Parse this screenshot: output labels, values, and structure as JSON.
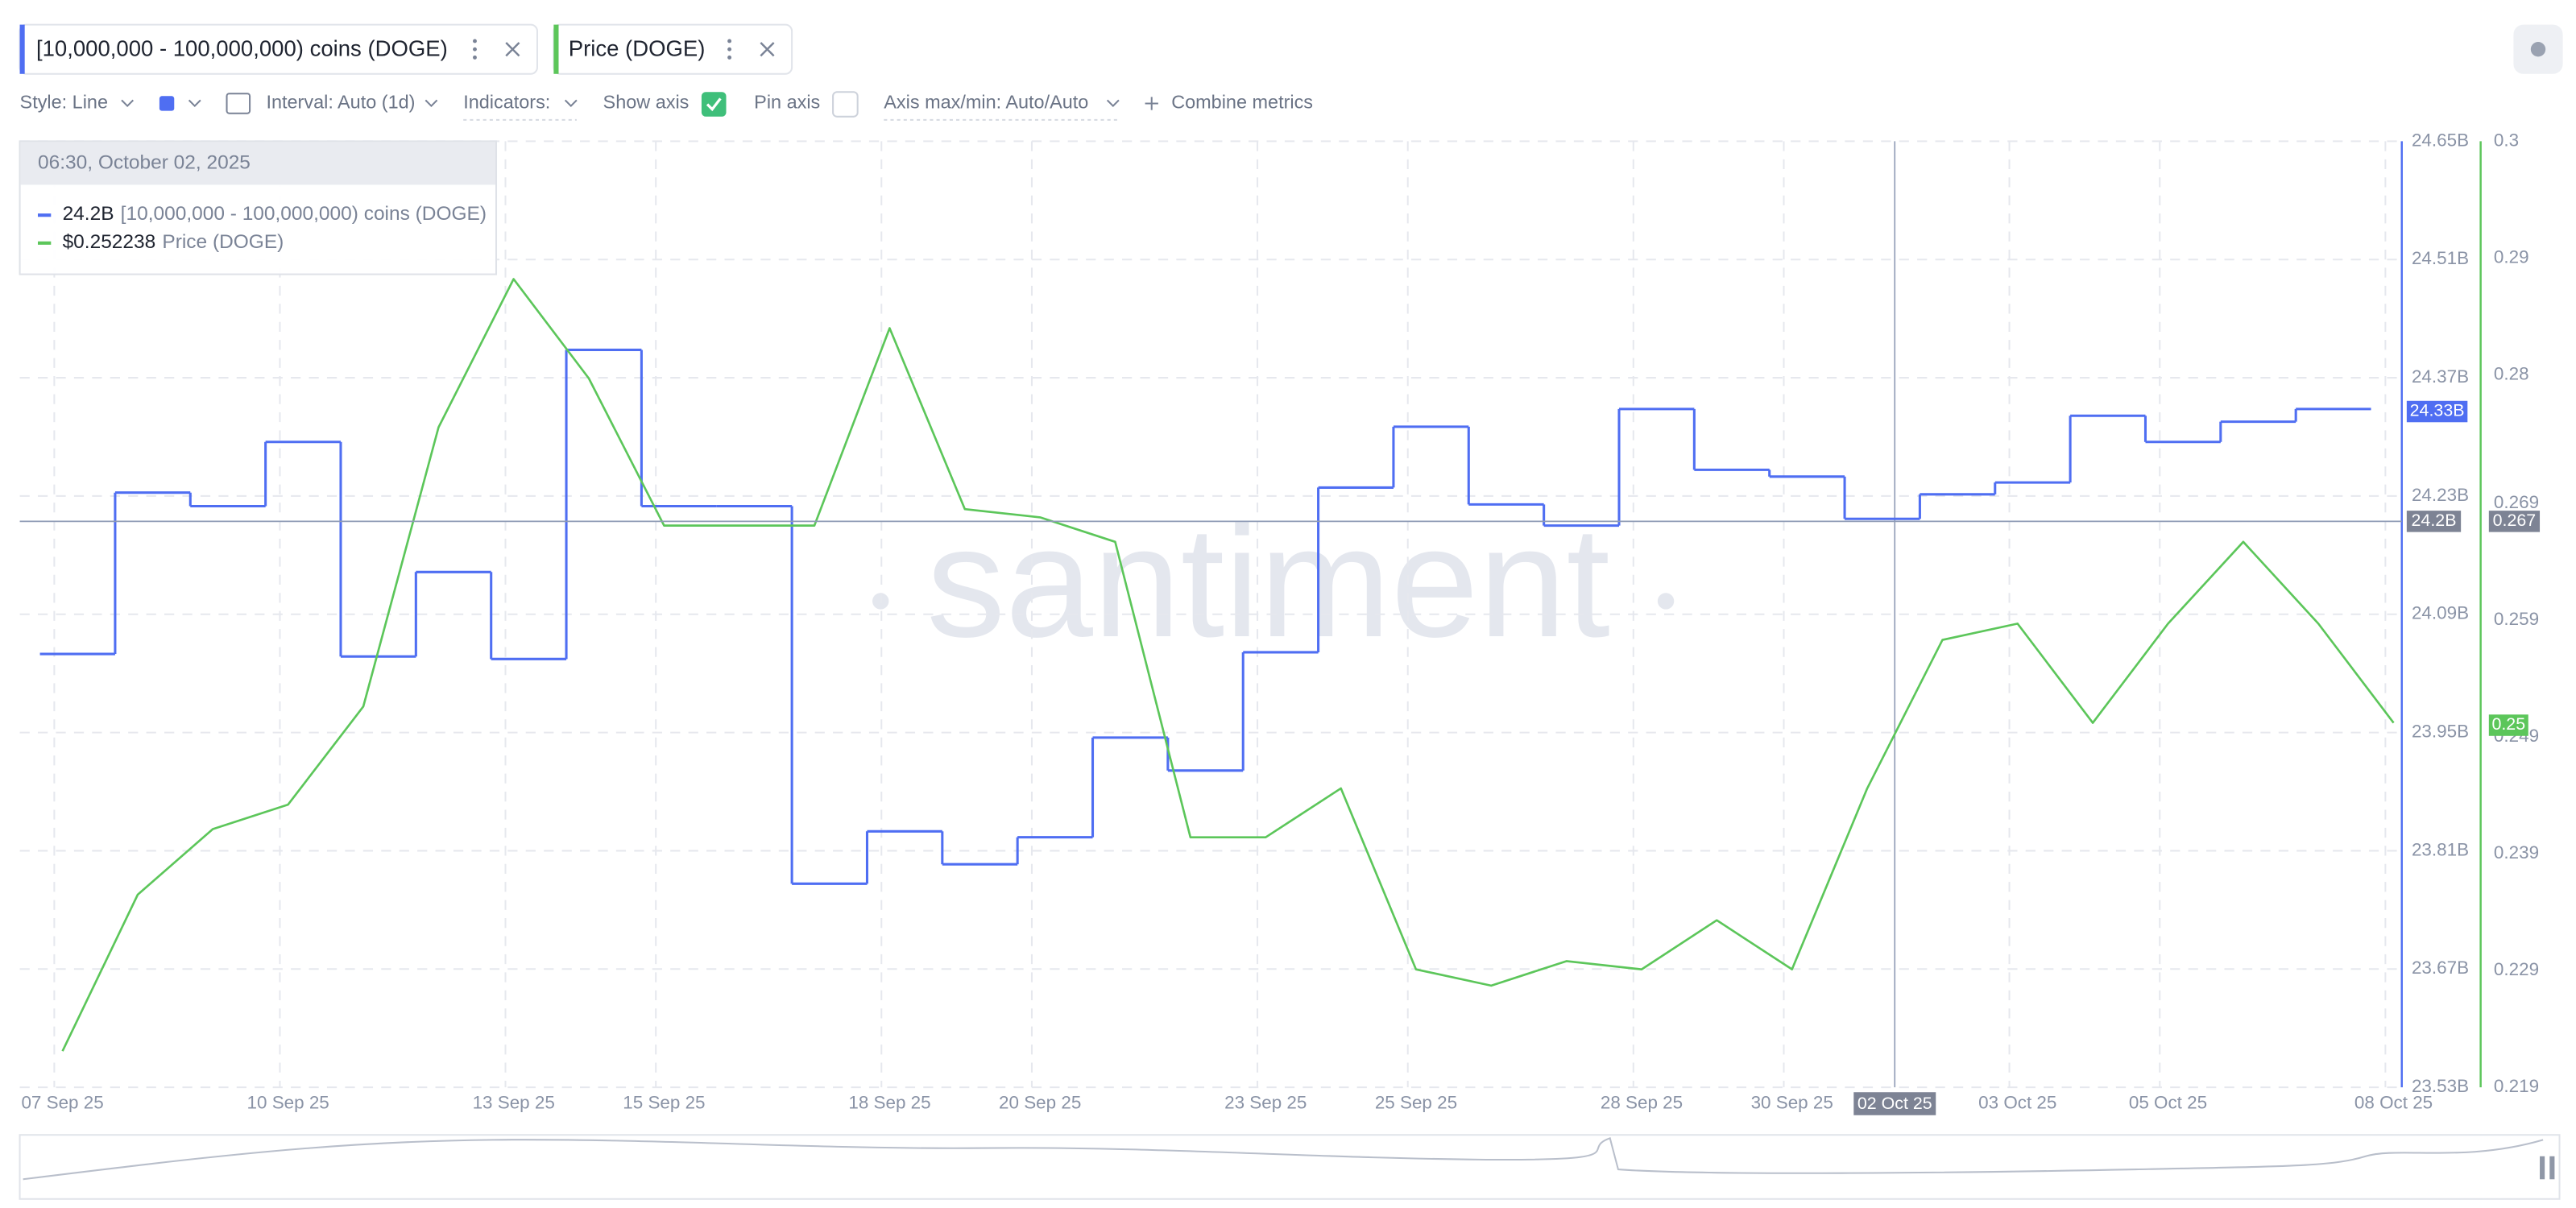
{
  "toolbar": {
    "style": "Style: Line",
    "interval": "Interval: Auto (1d)",
    "indicators": "Indicators:",
    "show_axis": "Show axis",
    "pin_axis": "Pin axis",
    "axis_minmax": "Axis max/min: Auto/Auto",
    "combine": "Combine metrics"
  },
  "tooltip": {
    "time": "06:30, October 02, 2025",
    "rows": [
      "24.2B",
      "$0.252238"
    ]
  },
  "chart_data": {
    "type": "line",
    "watermark": "santiment",
    "categories": [
      "07 Sep 25",
      null,
      null,
      "10 Sep 25",
      null,
      null,
      "13 Sep 25",
      null,
      "15 Sep 25",
      null,
      null,
      "18 Sep 25",
      null,
      "20 Sep 25",
      null,
      null,
      "23 Sep 25",
      null,
      "25 Sep 25",
      null,
      null,
      "28 Sep 25",
      null,
      "30 Sep 25",
      null,
      "02 Oct 25",
      "03 Oct 25",
      null,
      "05 Oct 25",
      null,
      null,
      "08 Oct 25"
    ],
    "series": [
      {
        "name": "[10,000,000 - 100,000,000) coins (DOGE)",
        "color": "#4f6ef2",
        "step": true,
        "axis": "y",
        "current": {
          "value": 24.33,
          "label": "24.33B"
        },
        "values": [
          24.043,
          24.234,
          24.218,
          24.294,
          24.04,
          24.14,
          24.037,
          24.403,
          24.218,
          24.218,
          23.771,
          23.833,
          23.794,
          23.826,
          23.944,
          23.905,
          24.045,
          24.24,
          24.312,
          24.22,
          24.195,
          24.333,
          24.261,
          24.253,
          24.203,
          24.232,
          24.246,
          24.325,
          24.294,
          24.318,
          24.333,
          null
        ]
      },
      {
        "name": "Price (DOGE)",
        "color": "#5cc65a",
        "step": false,
        "axis": "y2",
        "current": 0.25,
        "values": [
          0.2221,
          0.2355,
          0.2411,
          0.2432,
          0.2516,
          0.2755,
          0.2882,
          0.2797,
          0.2671,
          0.2671,
          0.2671,
          0.284,
          0.2685,
          0.2678,
          0.2657,
          0.2404,
          0.2404,
          0.2446,
          0.2291,
          0.2277,
          0.2298,
          0.2291,
          0.2333,
          0.2291,
          0.2446,
          0.2573,
          0.2587,
          0.2502,
          0.2587,
          0.2657,
          0.2587,
          0.2502
        ]
      }
    ],
    "ylim": [
      23.53,
      24.65
    ],
    "yticks": [
      {
        "value": 24.65,
        "label": "24.65B"
      },
      {
        "value": 24.51,
        "label": "24.51B"
      },
      {
        "value": 24.37,
        "label": "24.37B"
      },
      {
        "value": 24.23,
        "label": "24.23B"
      },
      {
        "value": 24.09,
        "label": "24.09B"
      },
      {
        "value": 23.95,
        "label": "23.95B"
      },
      {
        "value": 23.81,
        "label": "23.81B"
      },
      {
        "value": 23.67,
        "label": "23.67B"
      },
      {
        "value": 23.53,
        "label": "23.53B"
      }
    ],
    "y2lim": [
      0.219,
      0.3
    ],
    "y2ticks": [
      0.3,
      0.29,
      0.28,
      0.269,
      0.259,
      0.249,
      0.239,
      0.229,
      0.219
    ],
    "grid": true,
    "crosshair": {
      "x": "02 Oct 25",
      "y": {
        "value": 24.2,
        "label": "24.2B"
      },
      "y2": 0.267
    }
  }
}
